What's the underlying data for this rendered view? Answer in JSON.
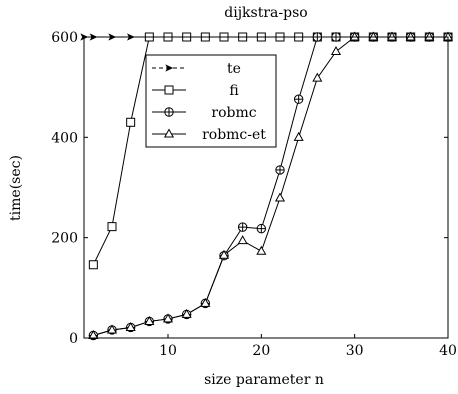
{
  "chart_data": {
    "type": "line",
    "title": "dijkstra-pso",
    "xlabel": "size parameter n",
    "ylabel": "time(sec)",
    "xlim": [
      1,
      40
    ],
    "ylim": [
      0,
      600
    ],
    "xticks": [
      10,
      20,
      30,
      40
    ],
    "yticks": [
      0,
      200,
      400,
      600
    ],
    "xtick_labels": [
      "10",
      "20",
      "30",
      "40"
    ],
    "ytick_labels": [
      "0",
      "200",
      "400",
      "600"
    ],
    "grid": false,
    "legend_position": "top-left inside",
    "series": [
      {
        "name": "te",
        "marker": "arrow",
        "line": "dashed",
        "x": [
          1,
          2,
          4,
          6,
          8,
          10,
          12,
          14,
          16,
          18,
          20,
          22,
          24,
          26,
          28,
          30,
          32,
          34,
          36,
          38,
          40
        ],
        "y": [
          600,
          600,
          600,
          600,
          600,
          600,
          600,
          600,
          600,
          600,
          600,
          600,
          600,
          600,
          600,
          600,
          600,
          600,
          600,
          600,
          600
        ]
      },
      {
        "name": "fi",
        "marker": "square",
        "line": "solid",
        "x": [
          2,
          4,
          6,
          8,
          10,
          12,
          14,
          16,
          18,
          20,
          22,
          24,
          26,
          28,
          30,
          32,
          34,
          36,
          38,
          40
        ],
        "y": [
          146,
          222,
          430,
          600,
          600,
          600,
          600,
          600,
          600,
          600,
          600,
          600,
          600,
          600,
          600,
          600,
          600,
          600,
          600,
          600
        ]
      },
      {
        "name": "robmc",
        "marker": "oplus",
        "line": "solid",
        "x": [
          2,
          4,
          6,
          8,
          10,
          12,
          14,
          16,
          18,
          20,
          22,
          24,
          26,
          28,
          30,
          32,
          34,
          36,
          38,
          40
        ],
        "y": [
          5,
          16,
          21,
          33,
          38,
          47,
          69,
          164,
          221,
          218,
          335,
          476,
          600,
          600,
          600,
          600,
          600,
          600,
          600,
          600
        ]
      },
      {
        "name": "robmc-et",
        "marker": "triangle",
        "line": "solid",
        "x": [
          2,
          4,
          6,
          8,
          10,
          12,
          14,
          16,
          18,
          20,
          22,
          24,
          26,
          28,
          30,
          32,
          34,
          36,
          38,
          40
        ],
        "y": [
          5,
          16,
          21,
          33,
          38,
          47,
          69,
          165,
          194,
          173,
          279,
          400,
          518,
          571,
          600,
          600,
          600,
          600,
          600,
          600
        ]
      }
    ]
  }
}
